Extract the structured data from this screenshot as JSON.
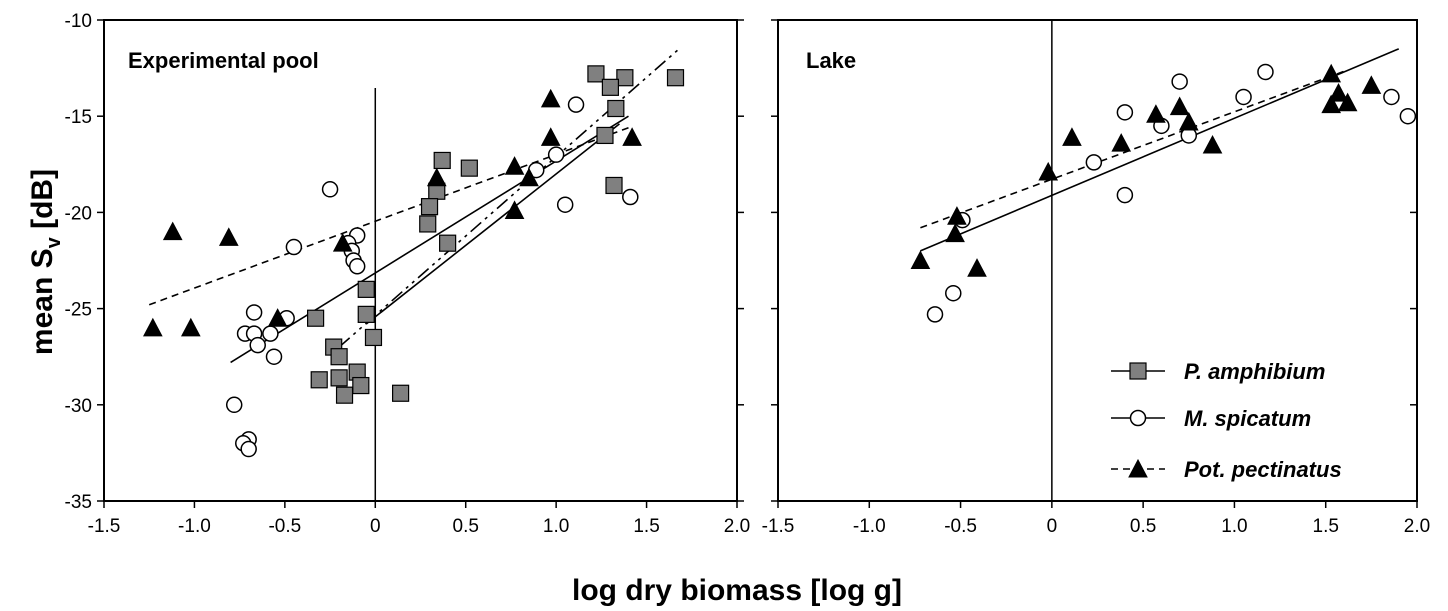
{
  "figure": {
    "xlabel": "log dry biomass [log g]",
    "ylabel_main": "mean S",
    "ylabel_sub": "v",
    "ylabel_unit": " [dB]"
  },
  "legend": [
    {
      "label": "P. amphibium",
      "marker": "square",
      "line": "solid"
    },
    {
      "label": "M. spicatum",
      "marker": "circle",
      "line": "solid"
    },
    {
      "label": "Pot. pectinatus",
      "marker": "triangle",
      "line": "dashed"
    }
  ],
  "colors": {
    "square_fill": "#808080",
    "triangle_fill": "#000000",
    "circle_fill": "#ffffff",
    "stroke": "#000000"
  },
  "chart_data": [
    {
      "type": "scatter",
      "title": "Experimental pool",
      "xlim": [
        -1.5,
        2.0
      ],
      "ylim": [
        -35,
        -10
      ],
      "x_ticks": [
        -1.5,
        -1.0,
        -0.5,
        0,
        0.5,
        1.0,
        1.5,
        2.0
      ],
      "x_tick_labels": [
        "-1.5",
        "-1.0",
        "-0.5",
        "0",
        "0.5",
        "1.0",
        "1.5",
        "2.0"
      ],
      "y_ticks": [
        -10,
        -15,
        -20,
        -25,
        -30,
        -35
      ],
      "y_tick_labels": [
        "-10",
        "-15",
        "-20",
        "-25",
        "-30",
        "-35"
      ],
      "series": [
        {
          "name": "P. amphibium",
          "marker": "square",
          "points": [
            [
              1.22,
              -12.8
            ],
            [
              1.66,
              -13.0
            ],
            [
              1.38,
              -13.0
            ],
            [
              1.3,
              -13.5
            ],
            [
              1.33,
              -14.6
            ],
            [
              1.27,
              -16.0
            ],
            [
              1.32,
              -18.6
            ],
            [
              0.37,
              -17.3
            ],
            [
              0.52,
              -17.7
            ],
            [
              0.34,
              -18.9
            ],
            [
              0.3,
              -19.7
            ],
            [
              0.29,
              -20.6
            ],
            [
              0.4,
              -21.6
            ],
            [
              -0.05,
              -24.0
            ],
            [
              -0.33,
              -25.5
            ],
            [
              -0.05,
              -25.3
            ],
            [
              -0.01,
              -26.5
            ],
            [
              -0.23,
              -27.0
            ],
            [
              -0.2,
              -27.5
            ],
            [
              -0.31,
              -28.7
            ],
            [
              -0.2,
              -28.6
            ],
            [
              -0.1,
              -28.3
            ],
            [
              -0.08,
              -29.0
            ],
            [
              -0.17,
              -29.5
            ],
            [
              0.14,
              -29.4
            ]
          ],
          "fit": [
            [
              -0.05,
              -25.8
            ],
            [
              1.35,
              -15.4
            ]
          ]
        },
        {
          "name": "M. spicatum",
          "marker": "circle",
          "points": [
            [
              -0.25,
              -18.8
            ],
            [
              1.11,
              -14.4
            ],
            [
              1.0,
              -17.0
            ],
            [
              0.89,
              -17.8
            ],
            [
              1.05,
              -19.6
            ],
            [
              1.41,
              -19.2
            ],
            [
              -0.45,
              -21.8
            ],
            [
              -0.1,
              -21.2
            ],
            [
              -0.15,
              -21.6
            ],
            [
              -0.13,
              -22.0
            ],
            [
              -0.12,
              -22.5
            ],
            [
              -0.1,
              -22.8
            ],
            [
              -0.67,
              -25.2
            ],
            [
              -0.49,
              -25.5
            ],
            [
              -0.72,
              -26.3
            ],
            [
              -0.67,
              -26.3
            ],
            [
              -0.58,
              -26.3
            ],
            [
              -0.65,
              -26.9
            ],
            [
              -0.56,
              -27.5
            ],
            [
              -0.78,
              -30.0
            ],
            [
              -0.7,
              -31.8
            ],
            [
              -0.73,
              -32.0
            ],
            [
              -0.7,
              -32.3
            ]
          ],
          "fit": [
            [
              -0.8,
              -27.8
            ],
            [
              1.4,
              -15.0
            ]
          ]
        },
        {
          "name": "Pot. pectinatus",
          "marker": "triangle",
          "points": [
            [
              -1.12,
              -21.0
            ],
            [
              -0.81,
              -21.3
            ],
            [
              -1.23,
              -26.0
            ],
            [
              -1.02,
              -26.0
            ],
            [
              -0.54,
              -25.5
            ],
            [
              -0.18,
              -21.6
            ],
            [
              0.34,
              -18.2
            ],
            [
              0.77,
              -17.6
            ],
            [
              0.77,
              -19.9
            ],
            [
              0.85,
              -18.2
            ],
            [
              0.97,
              -14.1
            ],
            [
              0.97,
              -16.1
            ],
            [
              1.42,
              -16.1
            ]
          ],
          "fit": [
            [
              -1.25,
              -24.8
            ],
            [
              1.4,
              -15.6
            ]
          ]
        },
        {
          "name": "",
          "marker": "none",
          "line": "dash-dot",
          "fit": [
            [
              -0.2,
              -27.0
            ],
            [
              1.68,
              -11.5
            ]
          ]
        }
      ]
    },
    {
      "type": "scatter",
      "title": "Lake",
      "xlim": [
        -1.5,
        2.0
      ],
      "ylim": [
        -35,
        -10
      ],
      "x_ticks": [
        -1.5,
        -1.0,
        -0.5,
        0,
        0.5,
        1.0,
        1.5,
        2.0
      ],
      "x_tick_labels": [
        "-1.5",
        "-1.0",
        "-0.5",
        "0",
        "0.5",
        "1.0",
        "1.5",
        "2.0"
      ],
      "y_ticks": [
        -10,
        -15,
        -20,
        -25,
        -30,
        -35
      ],
      "y_tick_labels": [],
      "series": [
        {
          "name": "M. spicatum",
          "marker": "circle",
          "points": [
            [
              0.7,
              -13.2
            ],
            [
              1.17,
              -12.7
            ],
            [
              1.05,
              -14.0
            ],
            [
              0.4,
              -14.8
            ],
            [
              0.6,
              -15.5
            ],
            [
              0.75,
              -16.0
            ],
            [
              0.23,
              -17.4
            ],
            [
              0.4,
              -19.1
            ],
            [
              -0.49,
              -20.4
            ],
            [
              -0.54,
              -24.2
            ],
            [
              -0.64,
              -25.3
            ],
            [
              1.86,
              -14.0
            ],
            [
              1.95,
              -15.0
            ]
          ],
          "fit": [
            [
              -0.72,
              -22.0
            ],
            [
              1.9,
              -11.5
            ]
          ]
        },
        {
          "name": "Pot. pectinatus",
          "marker": "triangle",
          "points": [
            [
              1.53,
              -12.8
            ],
            [
              1.75,
              -13.4
            ],
            [
              1.57,
              -13.8
            ],
            [
              1.53,
              -14.4
            ],
            [
              1.62,
              -14.3
            ],
            [
              0.7,
              -14.5
            ],
            [
              0.57,
              -14.9
            ],
            [
              0.75,
              -15.3
            ],
            [
              0.11,
              -16.1
            ],
            [
              0.38,
              -16.4
            ],
            [
              0.88,
              -16.5
            ],
            [
              -0.02,
              -17.9
            ],
            [
              -0.52,
              -20.2
            ],
            [
              -0.53,
              -21.1
            ],
            [
              -0.41,
              -22.9
            ],
            [
              -0.72,
              -22.5
            ]
          ],
          "fit": [
            [
              -0.72,
              -20.8
            ],
            [
              1.62,
              -12.6
            ]
          ]
        }
      ]
    }
  ]
}
